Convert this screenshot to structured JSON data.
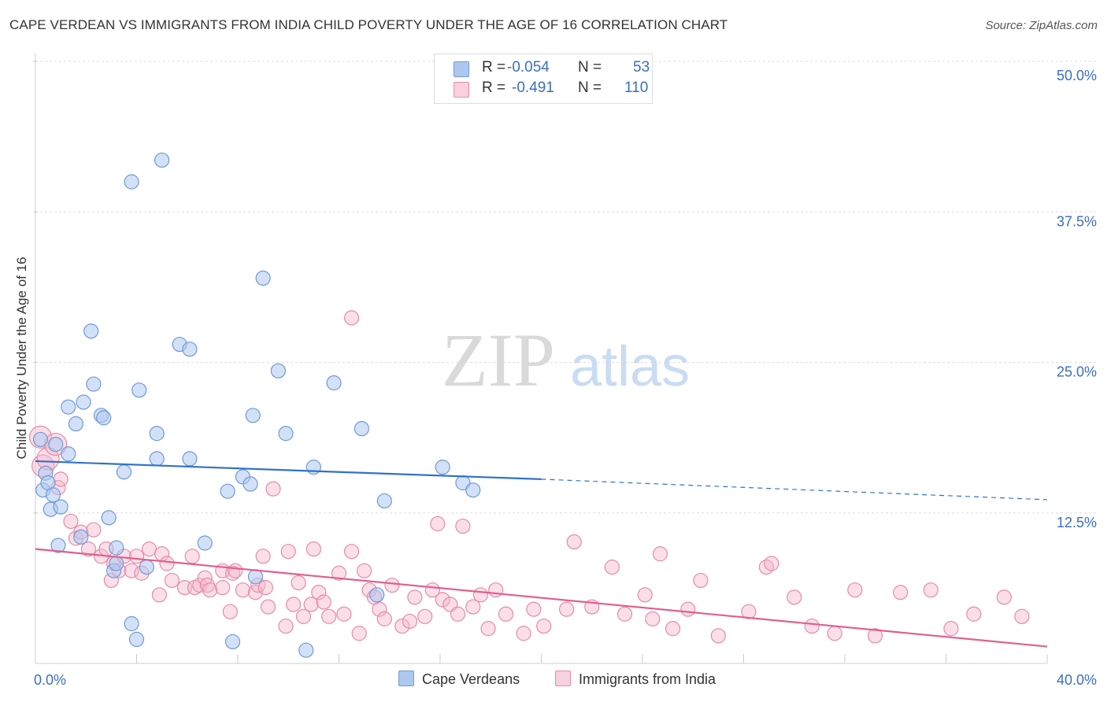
{
  "title": "CAPE VERDEAN VS IMMIGRANTS FROM INDIA CHILD POVERTY UNDER THE AGE OF 16 CORRELATION CHART",
  "source": "Source: ZipAtlas.com",
  "watermark": {
    "zip": "ZIP",
    "atlas": "atlas"
  },
  "colors": {
    "blue_fill": "#adc8f0",
    "blue_stroke": "#6f9ad8",
    "blue_line": "#2f72c9",
    "pink_fill": "#f5b9cc",
    "pink_stroke": "#e88aaa",
    "pink_line": "#e05f8e",
    "tick_label": "#3a6fc4",
    "grid": "#dddddd"
  },
  "legend": {
    "rows": [
      {
        "r_label": "R =",
        "r_value": "-0.054",
        "n_label": "N =",
        "n_value": "53"
      },
      {
        "r_label": "R =",
        "r_value": "-0.491",
        "n_label": "N =",
        "n_value": "110"
      }
    ]
  },
  "chart_data": {
    "type": "scatter",
    "title": "CAPE VERDEAN VS IMMIGRANTS FROM INDIA CHILD POVERTY UNDER THE AGE OF 16 CORRELATION CHART",
    "xlabel": "",
    "ylabel": "Child Poverty Under the Age of 16",
    "xlim": [
      0,
      40
    ],
    "ylim": [
      0,
      50
    ],
    "x_tick_labels": [
      "0.0%",
      "40.0%"
    ],
    "y_ticks": [
      12.5,
      25.0,
      37.5,
      50.0
    ],
    "y_tick_labels": [
      "12.5%",
      "25.0%",
      "37.5%",
      "50.0%"
    ],
    "grid": true,
    "legend_position": "top-center",
    "series": [
      {
        "name": "Cape Verdeans",
        "r": -0.054,
        "n": 53,
        "trend": {
          "x": [
            0,
            20
          ],
          "y": [
            16.8,
            15.3
          ],
          "dashed_to": [
            40,
            13.6
          ]
        },
        "points": [
          [
            0.2,
            18.6
          ],
          [
            0.3,
            14.4
          ],
          [
            0.4,
            15.8
          ],
          [
            0.5,
            15.0
          ],
          [
            0.6,
            12.8
          ],
          [
            0.7,
            14.0
          ],
          [
            0.8,
            18.2
          ],
          [
            0.9,
            9.8
          ],
          [
            1.0,
            13.0
          ],
          [
            1.3,
            21.3
          ],
          [
            1.3,
            17.4
          ],
          [
            1.6,
            19.9
          ],
          [
            1.8,
            10.5
          ],
          [
            1.9,
            21.7
          ],
          [
            2.2,
            27.6
          ],
          [
            2.3,
            23.2
          ],
          [
            2.6,
            20.6
          ],
          [
            2.7,
            20.4
          ],
          [
            2.9,
            12.1
          ],
          [
            3.1,
            7.7
          ],
          [
            3.2,
            8.3
          ],
          [
            3.2,
            9.6
          ],
          [
            3.5,
            15.9
          ],
          [
            3.8,
            3.3
          ],
          [
            3.8,
            40.0
          ],
          [
            4.0,
            2.0
          ],
          [
            4.1,
            22.7
          ],
          [
            4.4,
            8.0
          ],
          [
            4.8,
            17.0
          ],
          [
            4.8,
            19.1
          ],
          [
            5.0,
            41.8
          ],
          [
            5.7,
            26.5
          ],
          [
            6.1,
            26.1
          ],
          [
            6.1,
            17.0
          ],
          [
            6.7,
            10.0
          ],
          [
            7.6,
            14.3
          ],
          [
            7.8,
            1.8
          ],
          [
            8.2,
            15.5
          ],
          [
            8.5,
            14.9
          ],
          [
            8.6,
            20.6
          ],
          [
            8.7,
            7.2
          ],
          [
            9.0,
            32.0
          ],
          [
            9.6,
            24.3
          ],
          [
            9.9,
            19.1
          ],
          [
            10.7,
            1.1
          ],
          [
            11.0,
            16.3
          ],
          [
            11.8,
            23.3
          ],
          [
            12.9,
            19.5
          ],
          [
            13.5,
            5.7
          ],
          [
            13.8,
            13.5
          ],
          [
            16.1,
            16.3
          ],
          [
            16.9,
            15.0
          ],
          [
            17.3,
            14.4
          ]
        ]
      },
      {
        "name": "Immigrants from India",
        "r": -0.491,
        "n": 110,
        "trend": {
          "x": [
            0,
            40
          ],
          "y": [
            9.5,
            1.4
          ]
        },
        "points": [
          [
            0.2,
            18.8
          ],
          [
            0.3,
            16.4
          ],
          [
            0.5,
            17.0
          ],
          [
            0.8,
            18.2
          ],
          [
            0.9,
            14.6
          ],
          [
            1.0,
            15.3
          ],
          [
            1.4,
            11.8
          ],
          [
            1.6,
            10.4
          ],
          [
            1.8,
            10.9
          ],
          [
            2.1,
            9.5
          ],
          [
            2.3,
            11.1
          ],
          [
            2.6,
            8.9
          ],
          [
            2.8,
            9.5
          ],
          [
            3.0,
            6.9
          ],
          [
            3.1,
            8.3
          ],
          [
            3.3,
            7.7
          ],
          [
            3.5,
            8.9
          ],
          [
            3.8,
            7.7
          ],
          [
            4.0,
            8.9
          ],
          [
            4.2,
            7.5
          ],
          [
            4.5,
            9.5
          ],
          [
            4.9,
            5.7
          ],
          [
            5.0,
            9.1
          ],
          [
            5.2,
            8.3
          ],
          [
            5.4,
            6.9
          ],
          [
            5.9,
            6.3
          ],
          [
            6.2,
            8.9
          ],
          [
            6.3,
            6.3
          ],
          [
            6.5,
            6.5
          ],
          [
            6.7,
            7.1
          ],
          [
            6.8,
            6.5
          ],
          [
            6.9,
            6.1
          ],
          [
            7.4,
            6.3
          ],
          [
            7.4,
            7.7
          ],
          [
            7.7,
            4.3
          ],
          [
            7.8,
            7.5
          ],
          [
            7.9,
            7.7
          ],
          [
            8.2,
            6.1
          ],
          [
            8.7,
            5.9
          ],
          [
            8.8,
            6.5
          ],
          [
            9.0,
            8.9
          ],
          [
            9.2,
            4.7
          ],
          [
            9.4,
            14.5
          ],
          [
            9.9,
            3.1
          ],
          [
            10.0,
            9.3
          ],
          [
            10.2,
            4.9
          ],
          [
            10.4,
            6.7
          ],
          [
            10.6,
            3.9
          ],
          [
            10.9,
            4.9
          ],
          [
            11.0,
            9.5
          ],
          [
            11.2,
            5.9
          ],
          [
            11.4,
            5.1
          ],
          [
            11.6,
            3.9
          ],
          [
            12.0,
            7.5
          ],
          [
            12.2,
            4.1
          ],
          [
            12.5,
            9.3
          ],
          [
            12.8,
            2.5
          ],
          [
            13.0,
            7.7
          ],
          [
            13.2,
            6.1
          ],
          [
            13.4,
            5.5
          ],
          [
            13.6,
            4.5
          ],
          [
            13.8,
            3.7
          ],
          [
            14.1,
            6.5
          ],
          [
            14.5,
            3.1
          ],
          [
            14.8,
            3.5
          ],
          [
            15.0,
            5.5
          ],
          [
            15.4,
            3.9
          ],
          [
            15.7,
            6.1
          ],
          [
            15.9,
            11.6
          ],
          [
            16.1,
            5.3
          ],
          [
            16.4,
            4.9
          ],
          [
            16.7,
            4.1
          ],
          [
            16.9,
            11.4
          ],
          [
            17.3,
            4.7
          ],
          [
            17.6,
            5.7
          ],
          [
            17.9,
            2.9
          ],
          [
            18.2,
            6.1
          ],
          [
            18.6,
            4.1
          ],
          [
            19.3,
            2.5
          ],
          [
            19.7,
            4.5
          ],
          [
            20.1,
            3.1
          ],
          [
            21.0,
            4.5
          ],
          [
            21.3,
            10.1
          ],
          [
            22.0,
            4.7
          ],
          [
            22.8,
            8.0
          ],
          [
            23.3,
            4.1
          ],
          [
            24.1,
            5.7
          ],
          [
            24.4,
            3.7
          ],
          [
            24.7,
            9.1
          ],
          [
            25.2,
            2.9
          ],
          [
            25.8,
            4.5
          ],
          [
            26.3,
            6.9
          ],
          [
            27.0,
            2.3
          ],
          [
            28.2,
            4.3
          ],
          [
            28.9,
            8.0
          ],
          [
            29.1,
            8.3
          ],
          [
            30.0,
            5.5
          ],
          [
            30.7,
            3.1
          ],
          [
            31.6,
            2.5
          ],
          [
            32.4,
            6.1
          ],
          [
            33.2,
            2.3
          ],
          [
            34.2,
            5.9
          ],
          [
            35.4,
            6.1
          ],
          [
            36.2,
            2.9
          ],
          [
            37.1,
            4.1
          ],
          [
            38.3,
            5.5
          ],
          [
            39.0,
            3.9
          ],
          [
            12.5,
            28.7
          ],
          [
            9.1,
            6.3
          ]
        ]
      }
    ]
  }
}
